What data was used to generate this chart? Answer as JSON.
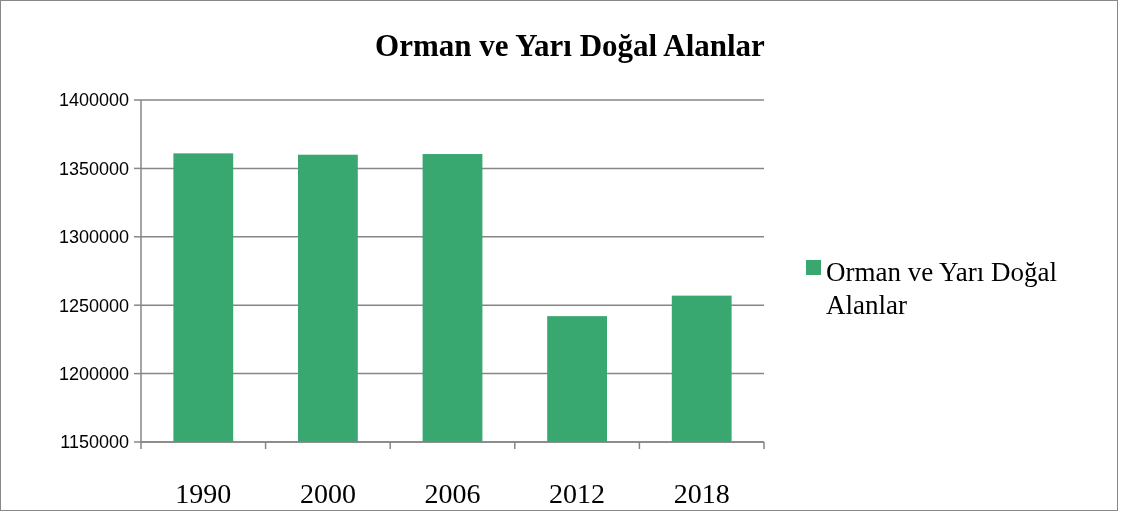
{
  "chart_data": {
    "type": "bar",
    "title": "Orman ve Yarı Doğal Alanlar",
    "categories": [
      "1990",
      "2000",
      "2006",
      "2012",
      "2018"
    ],
    "series": [
      {
        "name": "Orman ve Yarı Doğal Alanlar",
        "color": "#38a870",
        "values": [
          1361000,
          1360000,
          1360500,
          1242000,
          1257000
        ]
      }
    ],
    "ylim": [
      1150000,
      1400000
    ],
    "yticks": [
      1150000,
      1200000,
      1250000,
      1300000,
      1350000,
      1400000
    ],
    "grid": "y",
    "legend": "right"
  }
}
